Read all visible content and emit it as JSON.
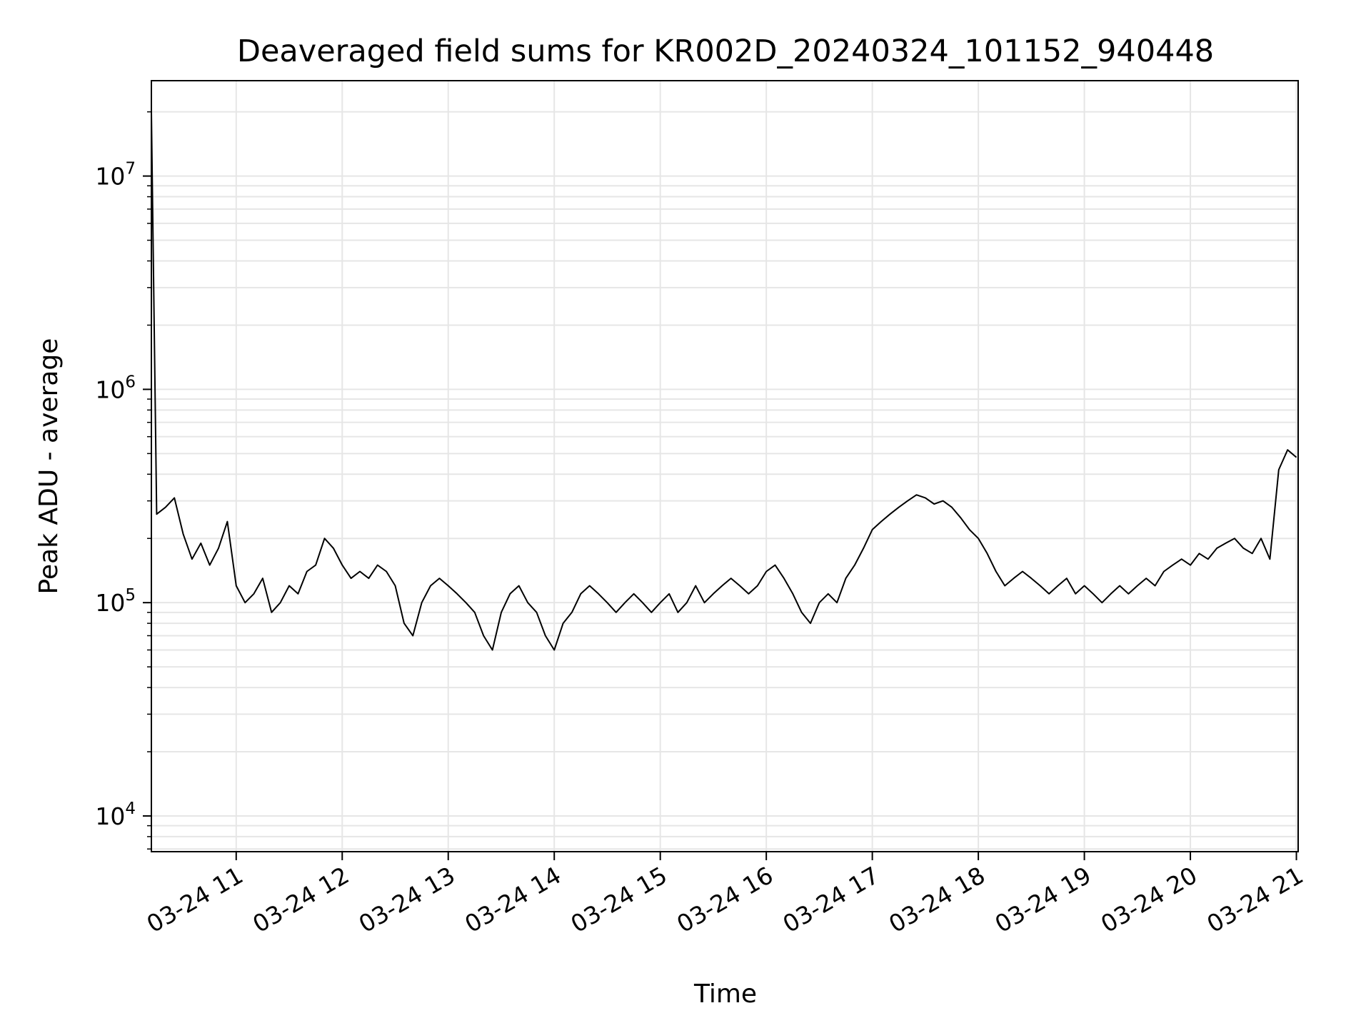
{
  "chart_data": {
    "type": "line",
    "title": "Deaveraged field sums for KR002D_20240324_101152_940448",
    "xlabel": "Time",
    "ylabel": "Peak ADU - average",
    "yscale": "log",
    "grid": true,
    "line_color": "#000000",
    "grid_color": "#e6e6e6",
    "x_ticks": [
      {
        "value": "2024-03-24 11:00",
        "label": "03-24 11"
      },
      {
        "value": "2024-03-24 12:00",
        "label": "03-24 12"
      },
      {
        "value": "2024-03-24 13:00",
        "label": "03-24 13"
      },
      {
        "value": "2024-03-24 14:00",
        "label": "03-24 14"
      },
      {
        "value": "2024-03-24 15:00",
        "label": "03-24 15"
      },
      {
        "value": "2024-03-24 16:00",
        "label": "03-24 16"
      },
      {
        "value": "2024-03-24 17:00",
        "label": "03-24 17"
      },
      {
        "value": "2024-03-24 18:00",
        "label": "03-24 18"
      },
      {
        "value": "2024-03-24 19:00",
        "label": "03-24 19"
      },
      {
        "value": "2024-03-24 20:00",
        "label": "03-24 20"
      },
      {
        "value": "2024-03-24 21:00",
        "label": "03-24 21"
      }
    ],
    "y_ticks": [
      {
        "value": 10000,
        "base": "10",
        "exp": "4"
      },
      {
        "value": 100000,
        "base": "10",
        "exp": "5"
      },
      {
        "value": 1000000,
        "base": "10",
        "exp": "6"
      },
      {
        "value": 10000000,
        "base": "10",
        "exp": "7"
      }
    ],
    "xlim": [
      "2024-03-24 10:12",
      "2024-03-24 21:01"
    ],
    "ylim": [
      6800,
      28000000
    ],
    "series": [
      {
        "points": [
          [
            "2024-03-24 10:12",
            20000000
          ],
          [
            "2024-03-24 10:15",
            260000
          ],
          [
            "2024-03-24 10:20",
            280000
          ],
          [
            "2024-03-24 10:25",
            310000
          ],
          [
            "2024-03-24 10:30",
            210000
          ],
          [
            "2024-03-24 10:35",
            160000
          ],
          [
            "2024-03-24 10:40",
            190000
          ],
          [
            "2024-03-24 10:45",
            150000
          ],
          [
            "2024-03-24 10:50",
            180000
          ],
          [
            "2024-03-24 10:55",
            240000
          ],
          [
            "2024-03-24 11:00",
            120000
          ],
          [
            "2024-03-24 11:05",
            100000
          ],
          [
            "2024-03-24 11:10",
            110000
          ],
          [
            "2024-03-24 11:15",
            130000
          ],
          [
            "2024-03-24 11:20",
            90000
          ],
          [
            "2024-03-24 11:25",
            100000
          ],
          [
            "2024-03-24 11:30",
            120000
          ],
          [
            "2024-03-24 11:35",
            110000
          ],
          [
            "2024-03-24 11:40",
            140000
          ],
          [
            "2024-03-24 11:45",
            150000
          ],
          [
            "2024-03-24 11:50",
            200000
          ],
          [
            "2024-03-24 11:55",
            180000
          ],
          [
            "2024-03-24 12:00",
            150000
          ],
          [
            "2024-03-24 12:05",
            130000
          ],
          [
            "2024-03-24 12:10",
            140000
          ],
          [
            "2024-03-24 12:15",
            130000
          ],
          [
            "2024-03-24 12:20",
            150000
          ],
          [
            "2024-03-24 12:25",
            140000
          ],
          [
            "2024-03-24 12:30",
            120000
          ],
          [
            "2024-03-24 12:35",
            80000
          ],
          [
            "2024-03-24 12:40",
            70000
          ],
          [
            "2024-03-24 12:45",
            100000
          ],
          [
            "2024-03-24 12:50",
            120000
          ],
          [
            "2024-03-24 12:55",
            130000
          ],
          [
            "2024-03-24 13:00",
            120000
          ],
          [
            "2024-03-24 13:05",
            110000
          ],
          [
            "2024-03-24 13:10",
            100000
          ],
          [
            "2024-03-24 13:15",
            90000
          ],
          [
            "2024-03-24 13:20",
            70000
          ],
          [
            "2024-03-24 13:25",
            60000
          ],
          [
            "2024-03-24 13:30",
            90000
          ],
          [
            "2024-03-24 13:35",
            110000
          ],
          [
            "2024-03-24 13:40",
            120000
          ],
          [
            "2024-03-24 13:45",
            100000
          ],
          [
            "2024-03-24 13:50",
            90000
          ],
          [
            "2024-03-24 13:55",
            70000
          ],
          [
            "2024-03-24 14:00",
            60000
          ],
          [
            "2024-03-24 14:05",
            80000
          ],
          [
            "2024-03-24 14:10",
            90000
          ],
          [
            "2024-03-24 14:15",
            110000
          ],
          [
            "2024-03-24 14:20",
            120000
          ],
          [
            "2024-03-24 14:25",
            110000
          ],
          [
            "2024-03-24 14:30",
            100000
          ],
          [
            "2024-03-24 14:35",
            90000
          ],
          [
            "2024-03-24 14:40",
            100000
          ],
          [
            "2024-03-24 14:45",
            110000
          ],
          [
            "2024-03-24 14:50",
            100000
          ],
          [
            "2024-03-24 14:55",
            90000
          ],
          [
            "2024-03-24 15:00",
            100000
          ],
          [
            "2024-03-24 15:05",
            110000
          ],
          [
            "2024-03-24 15:10",
            90000
          ],
          [
            "2024-03-24 15:15",
            100000
          ],
          [
            "2024-03-24 15:20",
            120000
          ],
          [
            "2024-03-24 15:25",
            100000
          ],
          [
            "2024-03-24 15:30",
            110000
          ],
          [
            "2024-03-24 15:35",
            120000
          ],
          [
            "2024-03-24 15:40",
            130000
          ],
          [
            "2024-03-24 15:45",
            120000
          ],
          [
            "2024-03-24 15:50",
            110000
          ],
          [
            "2024-03-24 15:55",
            120000
          ],
          [
            "2024-03-24 16:00",
            140000
          ],
          [
            "2024-03-24 16:05",
            150000
          ],
          [
            "2024-03-24 16:10",
            130000
          ],
          [
            "2024-03-24 16:15",
            110000
          ],
          [
            "2024-03-24 16:20",
            90000
          ],
          [
            "2024-03-24 16:25",
            80000
          ],
          [
            "2024-03-24 16:30",
            100000
          ],
          [
            "2024-03-24 16:35",
            110000
          ],
          [
            "2024-03-24 16:40",
            100000
          ],
          [
            "2024-03-24 16:45",
            130000
          ],
          [
            "2024-03-24 16:50",
            150000
          ],
          [
            "2024-03-24 16:55",
            180000
          ],
          [
            "2024-03-24 17:00",
            220000
          ],
          [
            "2024-03-24 17:05",
            240000
          ],
          [
            "2024-03-24 17:10",
            260000
          ],
          [
            "2024-03-24 17:15",
            280000
          ],
          [
            "2024-03-24 17:20",
            300000
          ],
          [
            "2024-03-24 17:25",
            320000
          ],
          [
            "2024-03-24 17:30",
            310000
          ],
          [
            "2024-03-24 17:35",
            290000
          ],
          [
            "2024-03-24 17:40",
            300000
          ],
          [
            "2024-03-24 17:45",
            280000
          ],
          [
            "2024-03-24 17:50",
            250000
          ],
          [
            "2024-03-24 17:55",
            220000
          ],
          [
            "2024-03-24 18:00",
            200000
          ],
          [
            "2024-03-24 18:05",
            170000
          ],
          [
            "2024-03-24 18:10",
            140000
          ],
          [
            "2024-03-24 18:15",
            120000
          ],
          [
            "2024-03-24 18:20",
            130000
          ],
          [
            "2024-03-24 18:25",
            140000
          ],
          [
            "2024-03-24 18:30",
            130000
          ],
          [
            "2024-03-24 18:35",
            120000
          ],
          [
            "2024-03-24 18:40",
            110000
          ],
          [
            "2024-03-24 18:45",
            120000
          ],
          [
            "2024-03-24 18:50",
            130000
          ],
          [
            "2024-03-24 18:55",
            110000
          ],
          [
            "2024-03-24 19:00",
            120000
          ],
          [
            "2024-03-24 19:05",
            110000
          ],
          [
            "2024-03-24 19:10",
            100000
          ],
          [
            "2024-03-24 19:15",
            110000
          ],
          [
            "2024-03-24 19:20",
            120000
          ],
          [
            "2024-03-24 19:25",
            110000
          ],
          [
            "2024-03-24 19:30",
            120000
          ],
          [
            "2024-03-24 19:35",
            130000
          ],
          [
            "2024-03-24 19:40",
            120000
          ],
          [
            "2024-03-24 19:45",
            140000
          ],
          [
            "2024-03-24 19:50",
            150000
          ],
          [
            "2024-03-24 19:55",
            160000
          ],
          [
            "2024-03-24 20:00",
            150000
          ],
          [
            "2024-03-24 20:05",
            170000
          ],
          [
            "2024-03-24 20:10",
            160000
          ],
          [
            "2024-03-24 20:15",
            180000
          ],
          [
            "2024-03-24 20:20",
            190000
          ],
          [
            "2024-03-24 20:25",
            200000
          ],
          [
            "2024-03-24 20:30",
            180000
          ],
          [
            "2024-03-24 20:35",
            170000
          ],
          [
            "2024-03-24 20:40",
            200000
          ],
          [
            "2024-03-24 20:45",
            160000
          ],
          [
            "2024-03-24 20:50",
            420000
          ],
          [
            "2024-03-24 20:55",
            520000
          ],
          [
            "2024-03-24 21:00",
            480000
          ]
        ]
      }
    ]
  }
}
